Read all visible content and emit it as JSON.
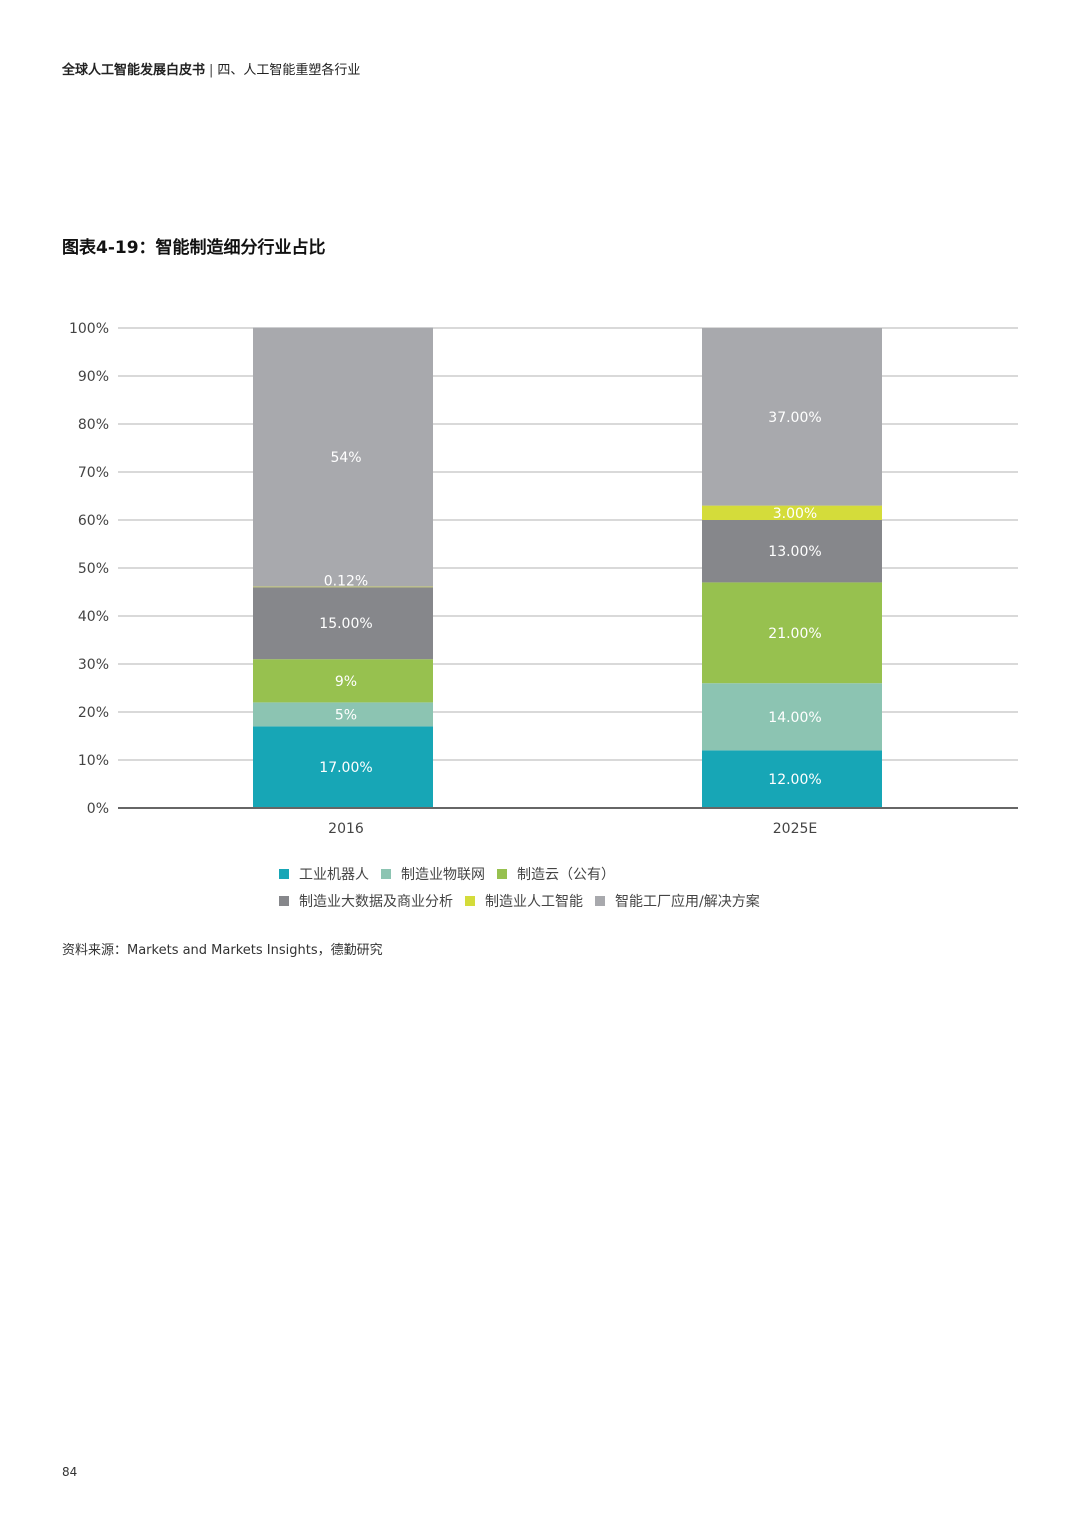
{
  "header": {
    "doc_title": "全球人工智能发展白皮书",
    "separator": "|",
    "section": "四、人工智能重塑各行业"
  },
  "figure": {
    "title": "图表4-19：智能制造细分行业占比"
  },
  "source_text": "资料来源：Markets and Markets Insights，德勤研究",
  "page_number": "84",
  "chart_data": {
    "type": "bar",
    "stacked": true,
    "categories": [
      "2016",
      "2025E"
    ],
    "ylim": [
      0,
      100
    ],
    "yticks": [
      0,
      10,
      20,
      30,
      40,
      50,
      60,
      70,
      80,
      90,
      100
    ],
    "ytick_labels": [
      "0%",
      "10%",
      "20%",
      "30%",
      "40%",
      "50%",
      "60%",
      "70%",
      "80%",
      "90%",
      "100%"
    ],
    "grid": true,
    "legend_position": "bottom",
    "series": [
      {
        "name": "工业机器人",
        "color": "#17a6b6",
        "values": [
          17,
          12
        ],
        "labels": [
          "17.00%",
          "12.00%"
        ]
      },
      {
        "name": "制造业物联网",
        "color": "#8cc4b2",
        "values": [
          5,
          14
        ],
        "labels": [
          "5%",
          "14.00%"
        ]
      },
      {
        "name": "制造云（公有）",
        "color": "#97c14f",
        "values": [
          9,
          21
        ],
        "labels": [
          "9%",
          "21.00%"
        ]
      },
      {
        "name": "制造业大数据及商业分析",
        "color": "#86878b",
        "values": [
          15,
          13
        ],
        "labels": [
          "15.00%",
          "13.00%"
        ]
      },
      {
        "name": "制造业人工智能",
        "color": "#d4dc3a",
        "values": [
          0.12,
          3
        ],
        "labels": [
          "0.12%",
          "3.00%"
        ]
      },
      {
        "name": "智能工厂应用/解决方案",
        "color": "#a8a9ad",
        "values": [
          54,
          37
        ],
        "labels": [
          "54%",
          "37.00%"
        ]
      }
    ]
  }
}
